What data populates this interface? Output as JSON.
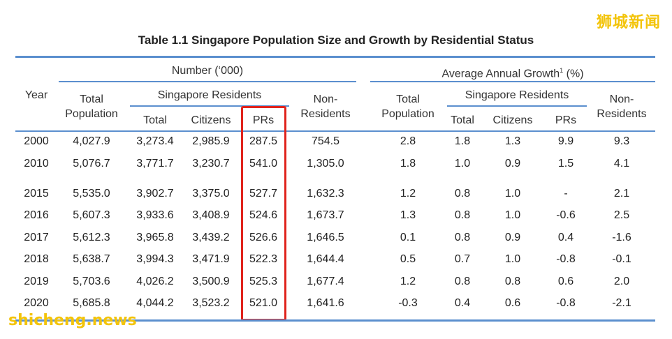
{
  "watermark_top": "狮城新闻",
  "watermark_bottom": "shicheng.news",
  "title": "Table 1.1  Singapore Population Size and Growth by Residential Status",
  "headers": {
    "year": "Year",
    "number_group": "Number (‘000)",
    "growth_group": "Average Annual Growth",
    "growth_sup": "1",
    "growth_unit": " (%)",
    "total_population_1": "Total",
    "total_population_2": "Population",
    "singapore_residents": "Singapore Residents",
    "total": "Total",
    "citizens": "Citizens",
    "prs": "PRs",
    "non_residents_1": "Non-",
    "non_residents_2": "Residents"
  },
  "rows": [
    {
      "year": "2000",
      "n": [
        "4,027.9",
        "3,273.4",
        "2,985.9",
        "287.5",
        "754.5"
      ],
      "g": [
        "2.8",
        "1.8",
        "1.3",
        "9.9",
        "9.3"
      ]
    },
    {
      "year": "2010",
      "n": [
        "5,076.7",
        "3,771.7",
        "3,230.7",
        "541.0",
        "1,305.0"
      ],
      "g": [
        "1.8",
        "1.0",
        "0.9",
        "1.5",
        "4.1"
      ]
    },
    {
      "year": "2015",
      "n": [
        "5,535.0",
        "3,902.7",
        "3,375.0",
        "527.7",
        "1,632.3"
      ],
      "g": [
        "1.2",
        "0.8",
        "1.0",
        "-",
        "2.1"
      ]
    },
    {
      "year": "2016",
      "n": [
        "5,607.3",
        "3,933.6",
        "3,408.9",
        "524.6",
        "1,673.7"
      ],
      "g": [
        "1.3",
        "0.8",
        "1.0",
        "-0.6",
        "2.5"
      ]
    },
    {
      "year": "2017",
      "n": [
        "5,612.3",
        "3,965.8",
        "3,439.2",
        "526.6",
        "1,646.5"
      ],
      "g": [
        "0.1",
        "0.8",
        "0.9",
        "0.4",
        "-1.6"
      ]
    },
    {
      "year": "2018",
      "n": [
        "5,638.7",
        "3,994.3",
        "3,471.9",
        "522.3",
        "1,644.4"
      ],
      "g": [
        "0.5",
        "0.7",
        "1.0",
        "-0.8",
        "-0.1"
      ]
    },
    {
      "year": "2019",
      "n": [
        "5,703.6",
        "4,026.2",
        "3,500.9",
        "525.3",
        "1,677.4"
      ],
      "g": [
        "1.2",
        "0.8",
        "0.8",
        "0.6",
        "2.0"
      ]
    },
    {
      "year": "2020",
      "n": [
        "5,685.8",
        "4,044.2",
        "3,523.2",
        "521.0",
        "1,641.6"
      ],
      "g": [
        "-0.3",
        "0.4",
        "0.6",
        "-0.8",
        "-2.1"
      ]
    }
  ]
}
